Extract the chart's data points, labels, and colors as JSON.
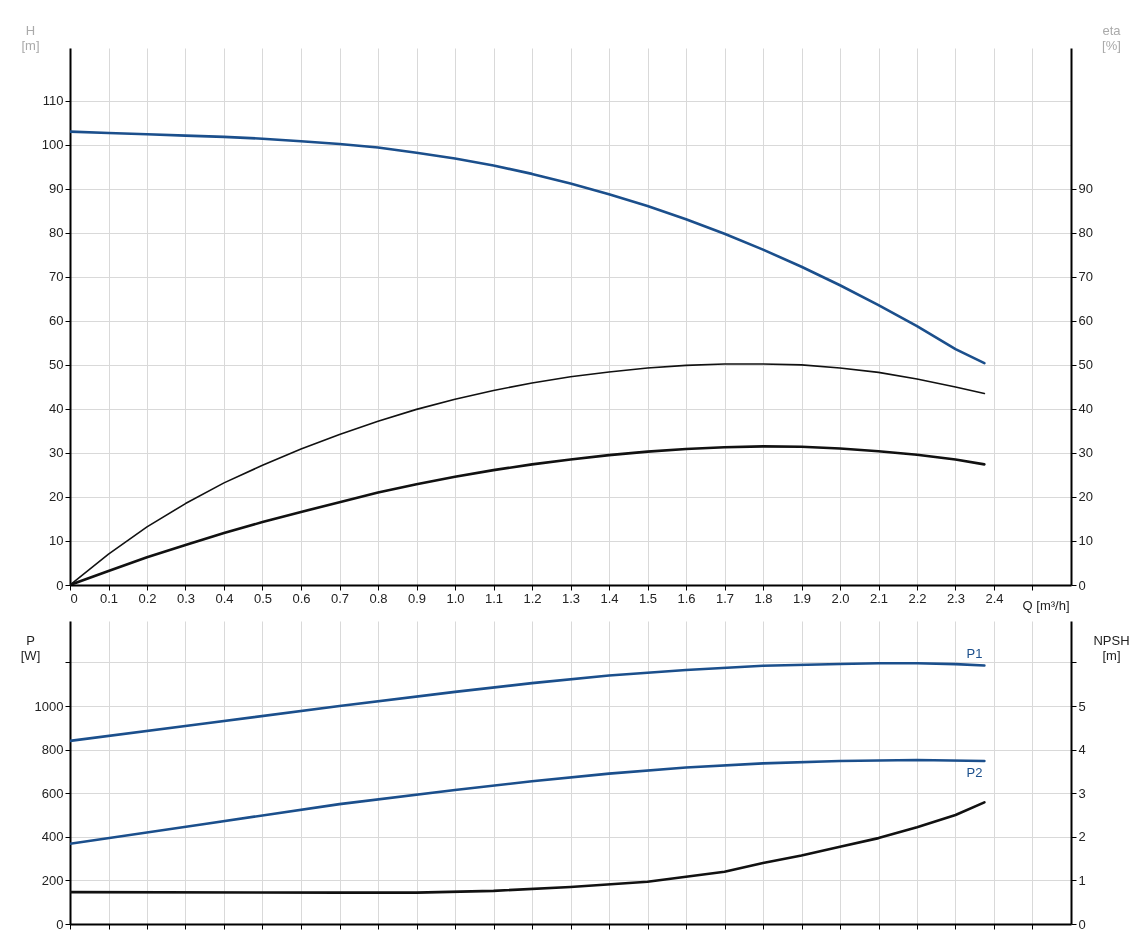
{
  "chart_data": [
    {
      "type": "line",
      "xlabel": "Q [m³/h]",
      "ylabel": "H [m]",
      "y2label": "eta [%]",
      "grid": true,
      "marker": "none",
      "line_style": "solid",
      "xlim": [
        0,
        2.6
      ],
      "xticks": [
        0,
        0.1,
        0.2,
        0.3,
        0.4,
        0.5,
        0.6,
        0.7,
        0.8,
        0.9,
        {
          "value": 1,
          "label": "1.0"
        },
        1.1,
        1.2,
        1.3,
        1.4,
        1.5,
        1.6,
        1.7,
        1.8,
        1.9,
        {
          "value": 2,
          "label": "2.0"
        },
        2.1,
        2.2,
        2.3,
        2.4,
        {
          "value": 2.5,
          "label": null
        }
      ],
      "ylim": [
        0,
        122
      ],
      "yticks": [
        0,
        10,
        20,
        30,
        40,
        50,
        60,
        70,
        80,
        90,
        100,
        110
      ],
      "y2lim": [
        0,
        122
      ],
      "y2ticks": [
        0,
        10,
        20,
        30,
        40,
        50,
        60,
        70,
        80,
        90
      ],
      "series": [
        {
          "color": "#1b4f8c",
          "x": [
            0,
            0.1,
            0.2,
            0.3,
            0.4,
            0.5,
            0.6,
            0.7,
            0.8,
            0.9,
            1.0,
            1.1,
            1.2,
            1.3,
            1.4,
            1.5,
            1.6,
            1.7,
            1.8,
            1.9,
            2.0,
            2.1,
            2.2,
            2.3,
            2.375
          ],
          "values": [
            103,
            102.7,
            102.4,
            102.1,
            101.8,
            101.4,
            100.8,
            100.2,
            99.4,
            98.2,
            96.9,
            95.3,
            93.4,
            91.2,
            88.8,
            86.1,
            83.1,
            79.8,
            76.2,
            72.3,
            68.1,
            63.6,
            58.8,
            53.6,
            50.4
          ]
        },
        {
          "color": "#111111",
          "axis": "y2",
          "x": [
            0,
            0.1,
            0.2,
            0.3,
            0.4,
            0.5,
            0.6,
            0.7,
            0.8,
            0.9,
            1.0,
            1.1,
            1.2,
            1.3,
            1.4,
            1.5,
            1.6,
            1.7,
            1.8,
            1.9,
            2.0,
            2.1,
            2.2,
            2.3,
            2.375
          ],
          "values": [
            0,
            7,
            13.2,
            18.5,
            23.2,
            27.2,
            30.9,
            34.2,
            37.2,
            39.9,
            42.2,
            44.2,
            45.9,
            47.3,
            48.4,
            49.3,
            49.9,
            50.2,
            50.2,
            50.0,
            49.3,
            48.3,
            46.8,
            45.0,
            43.5
          ]
        },
        {
          "color": "#111111",
          "axis": "y2",
          "x": [
            0,
            0.1,
            0.2,
            0.3,
            0.4,
            0.5,
            0.6,
            0.7,
            0.8,
            0.9,
            1.0,
            1.1,
            1.2,
            1.3,
            1.4,
            1.5,
            1.6,
            1.7,
            1.8,
            1.9,
            2.0,
            2.1,
            2.2,
            2.3,
            2.375
          ],
          "values": [
            0,
            3.2,
            6.3,
            9.1,
            11.8,
            14.3,
            16.6,
            18.8,
            21.0,
            22.9,
            24.6,
            26.1,
            27.4,
            28.5,
            29.5,
            30.3,
            30.9,
            31.3,
            31.5,
            31.4,
            31.0,
            30.4,
            29.6,
            28.5,
            27.4
          ]
        }
      ]
    },
    {
      "type": "line",
      "ylabel": "P [W]",
      "y2label": "NPSH [m]",
      "grid": true,
      "marker": "none",
      "line_style": "solid",
      "tick_labels": "y",
      "xlim": [
        0,
        2.6
      ],
      "xticks": [
        0,
        0.1,
        0.2,
        0.3,
        0.4,
        0.5,
        0.6,
        0.7,
        0.8,
        0.9,
        1,
        1.1,
        1.2,
        1.3,
        1.4,
        1.5,
        1.6,
        1.7,
        1.8,
        1.9,
        2,
        2.1,
        2.2,
        2.3,
        2.4,
        2.5
      ],
      "ylim": [
        0,
        1390
      ],
      "yticks": [
        0,
        200,
        400,
        600,
        800,
        1000,
        {
          "value": 1200,
          "label": null
        }
      ],
      "y2lim": [
        0,
        6.95
      ],
      "y2ticks": [
        0,
        1,
        2,
        3,
        4,
        5,
        {
          "value": 6,
          "label": null
        }
      ],
      "series": [
        {
          "name": "P1",
          "color": "#1b4f8c",
          "x": [
            0,
            0.35,
            0.7,
            1.0,
            1.2,
            1.4,
            1.6,
            1.8,
            2.0,
            2.1,
            2.2,
            2.3,
            2.375
          ],
          "values": [
            840,
            920,
            1000,
            1065,
            1105,
            1140,
            1165,
            1185,
            1193,
            1196,
            1196,
            1192,
            1186
          ]
        },
        {
          "name": "P2",
          "color": "#1b4f8c",
          "x": [
            0,
            0.35,
            0.7,
            1.0,
            1.2,
            1.4,
            1.6,
            1.8,
            2.0,
            2.2,
            2.375
          ],
          "values": [
            368,
            459,
            550,
            615,
            655,
            690,
            718,
            737,
            748,
            752,
            748
          ]
        },
        {
          "color": "#111111",
          "axis": "y2",
          "x": [
            0,
            0.7,
            0.9,
            1.1,
            1.3,
            1.5,
            1.7,
            1.8,
            1.9,
            2.0,
            2.1,
            2.2,
            2.3,
            2.375
          ],
          "values": [
            0.73,
            0.72,
            0.72,
            0.76,
            0.85,
            0.97,
            1.2,
            1.4,
            1.57,
            1.77,
            1.97,
            2.22,
            2.5,
            2.79
          ]
        }
      ]
    }
  ]
}
